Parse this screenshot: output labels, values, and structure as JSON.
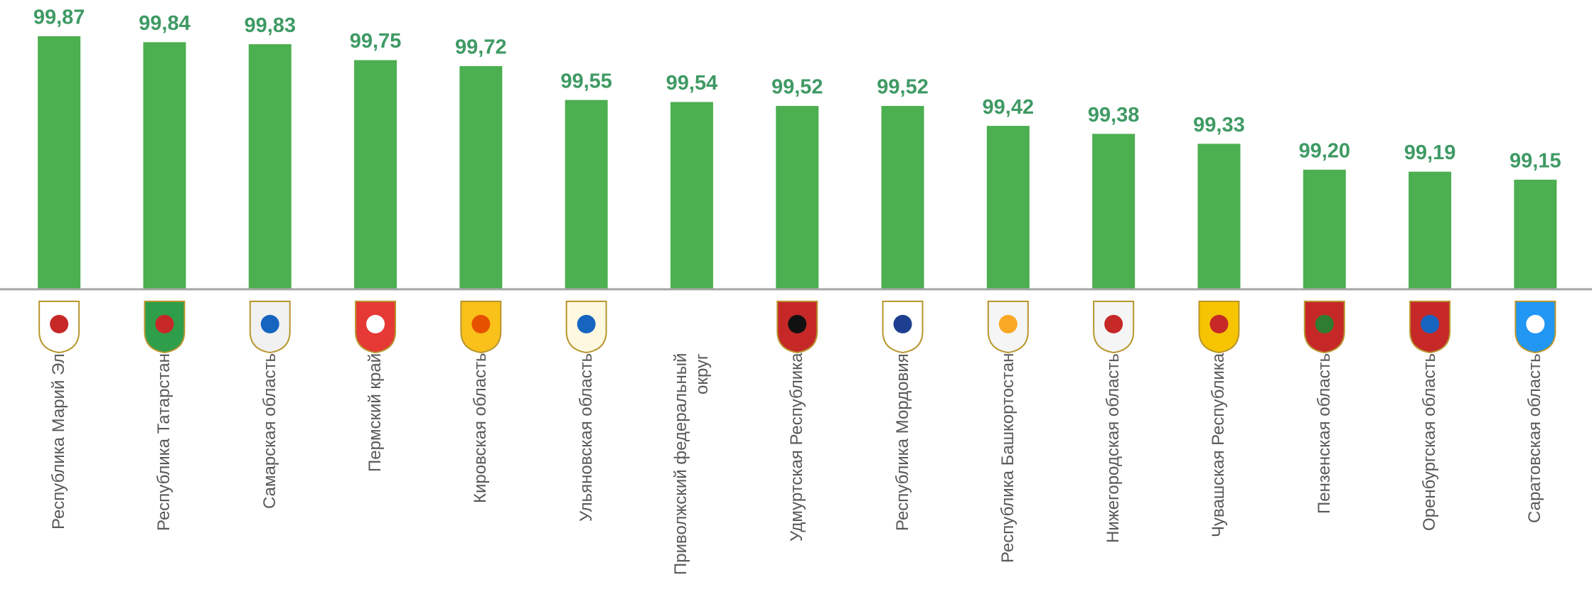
{
  "chart_data": {
    "type": "bar",
    "categories": [
      "Республика Марий Эл",
      "Республика Татарстан",
      "Самарская область",
      "Пермский край",
      "Кировская область",
      "Ульяновская область",
      "Приволжский федеральный округ",
      "Удмуртская Республика",
      "Республика Мордовия",
      "Республика Башкортостан",
      "Нижегородская область",
      "Чувашская Республика",
      "Пензенская область",
      "Оренбургская область",
      "Саратовская область"
    ],
    "values": [
      99.87,
      99.84,
      99.83,
      99.75,
      99.72,
      99.55,
      99.54,
      99.52,
      99.52,
      99.42,
      99.38,
      99.33,
      99.2,
      99.19,
      99.15
    ],
    "value_labels": [
      "99,87",
      "99,84",
      "99,83",
      "99,75",
      "99,72",
      "99,55",
      "99,54",
      "99,52",
      "99,52",
      "99,42",
      "99,38",
      "99,33",
      "99,20",
      "99,19",
      "99,15"
    ],
    "color": "#4caf50",
    "label_color": "#3f9a64",
    "ylim": [
      98.6,
      100
    ],
    "grid": false
  }
}
